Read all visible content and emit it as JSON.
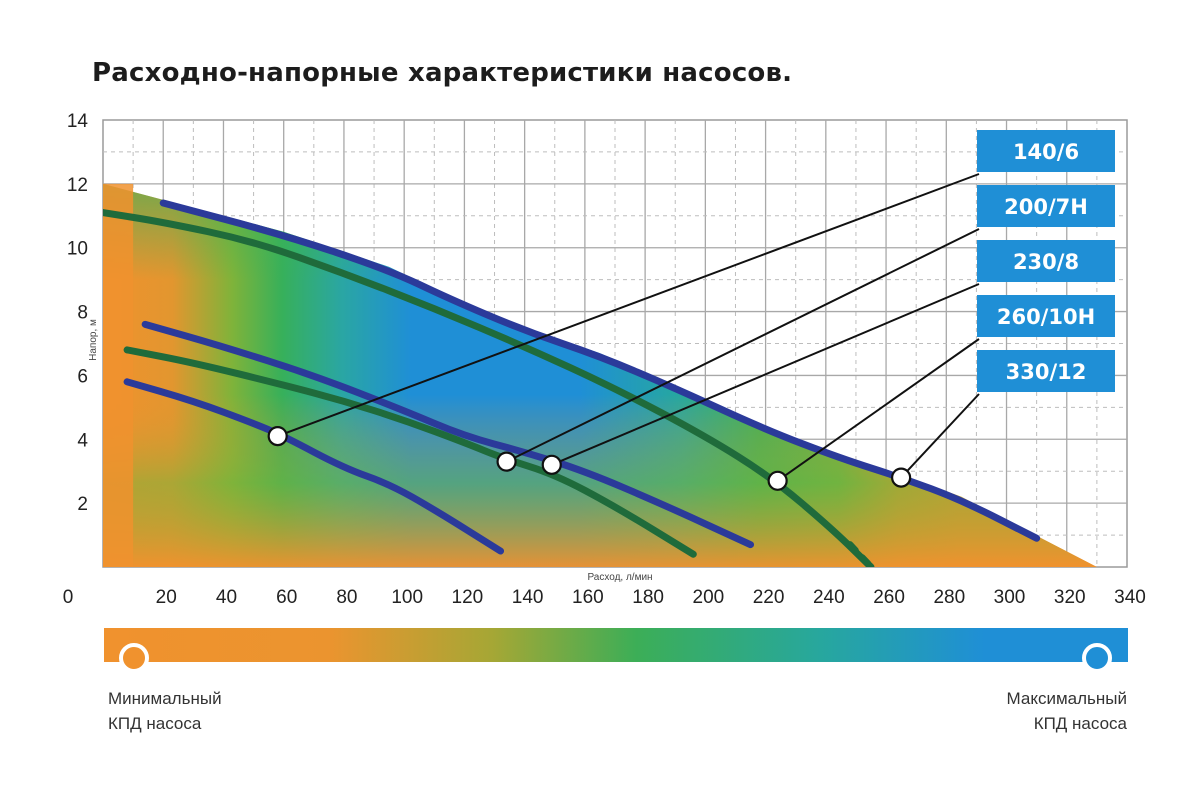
{
  "title": "Расходно-напорные характеристики насосов.",
  "chart_data": {
    "type": "line",
    "title": "Расходно-напорные характеристики насосов.",
    "xlabel": "Расход, л/мин",
    "ylabel": "Напор, м",
    "xlim": [
      0,
      340
    ],
    "ylim": [
      0,
      14
    ],
    "x_ticks": [
      "0",
      "20",
      "40",
      "60",
      "80",
      "100",
      "120",
      "140",
      "160",
      "180",
      "200",
      "220",
      "240",
      "260",
      "280",
      "300",
      "320",
      "340"
    ],
    "y_ticks": [
      "2",
      "4",
      "6",
      "8",
      "10",
      "12",
      "14"
    ],
    "grid": true,
    "series": [
      {
        "name": "140/6",
        "color": "#2b3a9a",
        "points": [
          [
            8,
            5.8
          ],
          [
            30,
            5.2
          ],
          [
            50,
            4.5
          ],
          [
            60,
            4.1
          ],
          [
            80,
            3.1
          ],
          [
            95,
            2.6
          ],
          [
            110,
            1.8
          ],
          [
            132,
            0.5
          ]
        ],
        "marker": [
          58,
          4.1
        ]
      },
      {
        "name": "200/7H",
        "color": "#1f6b3b",
        "points": [
          [
            8,
            6.8
          ],
          [
            30,
            6.4
          ],
          [
            60,
            5.7
          ],
          [
            80,
            5.2
          ],
          [
            100,
            4.6
          ],
          [
            120,
            3.9
          ],
          [
            133,
            3.4
          ],
          [
            150,
            2.9
          ],
          [
            170,
            1.9
          ],
          [
            196,
            0.4
          ]
        ],
        "marker": [
          134,
          3.3
        ]
      },
      {
        "name": "230/8",
        "color": "#2b3a9a",
        "points": [
          [
            14,
            7.6
          ],
          [
            40,
            6.9
          ],
          [
            70,
            6.0
          ],
          [
            100,
            4.9
          ],
          [
            120,
            4.1
          ],
          [
            140,
            3.6
          ],
          [
            160,
            3.0
          ],
          [
            185,
            2.0
          ],
          [
            215,
            0.7
          ]
        ],
        "marker": [
          149,
          3.2
        ]
      },
      {
        "name": "260/10H",
        "color": "#1f6b3b",
        "points": [
          [
            0,
            11.1
          ],
          [
            20,
            10.8
          ],
          [
            50,
            10.2
          ],
          [
            80,
            9.2
          ],
          [
            110,
            8.1
          ],
          [
            140,
            6.9
          ],
          [
            170,
            5.6
          ],
          [
            200,
            4.1
          ],
          [
            222,
            2.8
          ],
          [
            242,
            1.2
          ],
          [
            255,
            0.0
          ]
        ],
        "marker": [
          224,
          2.7
        ]
      },
      {
        "name": "330/12",
        "color": "#2b3a9a",
        "points": [
          [
            20,
            11.4
          ],
          [
            60,
            10.4
          ],
          [
            95,
            9.3
          ],
          [
            115,
            8.4
          ],
          [
            140,
            7.4
          ],
          [
            165,
            6.6
          ],
          [
            190,
            5.6
          ],
          [
            220,
            4.3
          ],
          [
            245,
            3.4
          ],
          [
            265,
            2.8
          ],
          [
            285,
            2.1
          ],
          [
            310,
            0.9
          ]
        ],
        "marker": [
          265,
          2.8
        ]
      }
    ],
    "legend_position": "right",
    "colorbar": {
      "min_label": "Минимальный КПД насоса",
      "max_label": "Максимальный КПД насоса",
      "min_color": "#f0922e",
      "max_color": "#1f8fd6"
    }
  },
  "efficiency": {
    "min_line1": "Минимальный",
    "min_line2": "КПД насоса",
    "max_line1": "Максимальный",
    "max_line2": "КПД насоса"
  }
}
